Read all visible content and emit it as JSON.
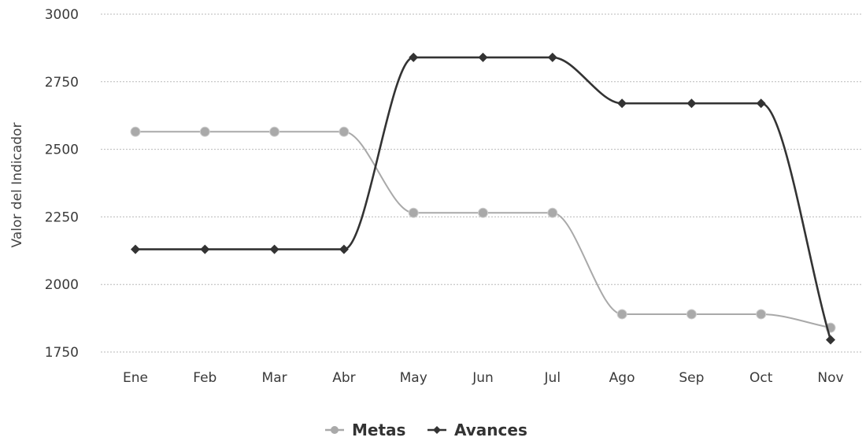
{
  "chart_data": {
    "type": "line",
    "categories": [
      "Ene",
      "Feb",
      "Mar",
      "Abr",
      "May",
      "Jun",
      "Jul",
      "Ago",
      "Sep",
      "Oct",
      "Nov"
    ],
    "series": [
      {
        "name": "Metas",
        "color": "#a9a9a9",
        "values": [
          2565,
          2565,
          2565,
          2565,
          2265,
          2265,
          2265,
          1890,
          1890,
          1890,
          1840
        ]
      },
      {
        "name": "Avances",
        "color": "#333333",
        "values": [
          2130,
          2130,
          2130,
          2130,
          2840,
          2840,
          2840,
          2670,
          2670,
          2670,
          1795
        ]
      }
    ],
    "title": "",
    "xlabel": "",
    "ylabel": "Valor del Indicador",
    "ylim": [
      1750,
      3000
    ],
    "yticks": [
      1750,
      2000,
      2250,
      2500,
      2750,
      3000
    ],
    "grid": true,
    "legend_position": "bottom-center",
    "smooth": true
  }
}
